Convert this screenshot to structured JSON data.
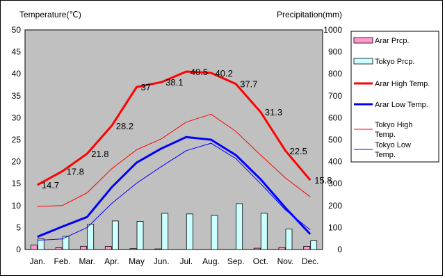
{
  "chart_data": {
    "type": "bar+line",
    "categories": [
      "Jan.",
      "Feb.",
      "Mar.",
      "Apr.",
      "May",
      "Jun.",
      "Jul.",
      "Aug.",
      "Sep.",
      "Oct.",
      "Nov.",
      "Dec."
    ],
    "left_axis": {
      "label": "Temperature(℃)",
      "ylim": [
        0,
        50
      ],
      "ticks": [
        0,
        5,
        10,
        15,
        20,
        25,
        30,
        35,
        40,
        45,
        50
      ]
    },
    "right_axis": {
      "label": "Precipitation(mm)",
      "ylim": [
        0,
        1000
      ],
      "ticks": [
        0,
        100,
        200,
        300,
        400,
        500,
        600,
        700,
        800,
        900,
        1000
      ]
    },
    "bars": [
      {
        "name": "Arar Prcp.",
        "axis": "right",
        "color": "#ff99cc",
        "values": [
          20,
          8,
          15,
          14,
          4,
          3,
          0,
          0,
          0,
          6,
          9,
          14
        ]
      },
      {
        "name": "Tokyo Prcp.",
        "axis": "right",
        "color": "#ccffff",
        "values": [
          48,
          60,
          115,
          130,
          128,
          165,
          162,
          155,
          209,
          165,
          93,
          40
        ]
      }
    ],
    "lines": [
      {
        "name": "Arar High Temp.",
        "axis": "left",
        "color": "#ff0000",
        "width": 3,
        "values": [
          14.7,
          17.8,
          21.8,
          28.2,
          37,
          38.1,
          40.5,
          40.2,
          37.7,
          31.3,
          22.5,
          15.8
        ]
      },
      {
        "name": "Arar Low Temp.",
        "axis": "left",
        "color": "#0000ff",
        "width": 3,
        "values": [
          2.9,
          5.2,
          7.4,
          14.2,
          19.8,
          23,
          25.6,
          25,
          21.5,
          16,
          9.5,
          3.5
        ]
      },
      {
        "name": "Tokyo High Temp.",
        "axis": "left",
        "color": "#ff0000",
        "width": 1,
        "values": [
          9.8,
          10,
          12.9,
          18.4,
          22.7,
          25.2,
          29,
          30.8,
          26.9,
          21.5,
          16.3,
          12
        ]
      },
      {
        "name": "Tokyo Low Temp.",
        "axis": "left",
        "color": "#0000ff",
        "width": 1,
        "values": [
          2.1,
          2.4,
          5,
          10.5,
          15.1,
          18.9,
          22.5,
          24.2,
          20.7,
          15,
          9,
          4.5
        ]
      }
    ],
    "data_labels": {
      "series": "Arar High Temp.",
      "texts": [
        "14.7",
        "17.8",
        "21.8",
        "28.2",
        "37",
        "38.1",
        "40.5",
        "40.2",
        "37.7",
        "31.3",
        "22.5",
        "15.8"
      ]
    },
    "legend": {
      "placement": "right",
      "items": [
        {
          "name": "Arar Prcp.",
          "kind": "bar",
          "color": "#ff99cc",
          "lines": [
            "Arar Prcp."
          ]
        },
        {
          "name": "Tokyo Prcp.",
          "kind": "bar",
          "color": "#ccffff",
          "lines": [
            "Tokyo Prcp."
          ]
        },
        {
          "name": "Arar High Temp.",
          "kind": "line",
          "color": "#ff0000",
          "width": 3,
          "lines": [
            "Arar High Temp."
          ]
        },
        {
          "name": "Arar Low Temp.",
          "kind": "line",
          "color": "#0000ff",
          "width": 3,
          "lines": [
            "Arar Low Temp."
          ]
        },
        {
          "name": "Tokyo High Temp.",
          "kind": "line",
          "color": "#ff0000",
          "width": 1,
          "lines": [
            "Tokyo High",
            "Temp."
          ]
        },
        {
          "name": "Tokyo Low Temp.",
          "kind": "line",
          "color": "#0000ff",
          "width": 1,
          "lines": [
            "Tokyo Low",
            "Temp."
          ]
        }
      ]
    },
    "plot_background": "#c0c0c0",
    "grid": false
  }
}
